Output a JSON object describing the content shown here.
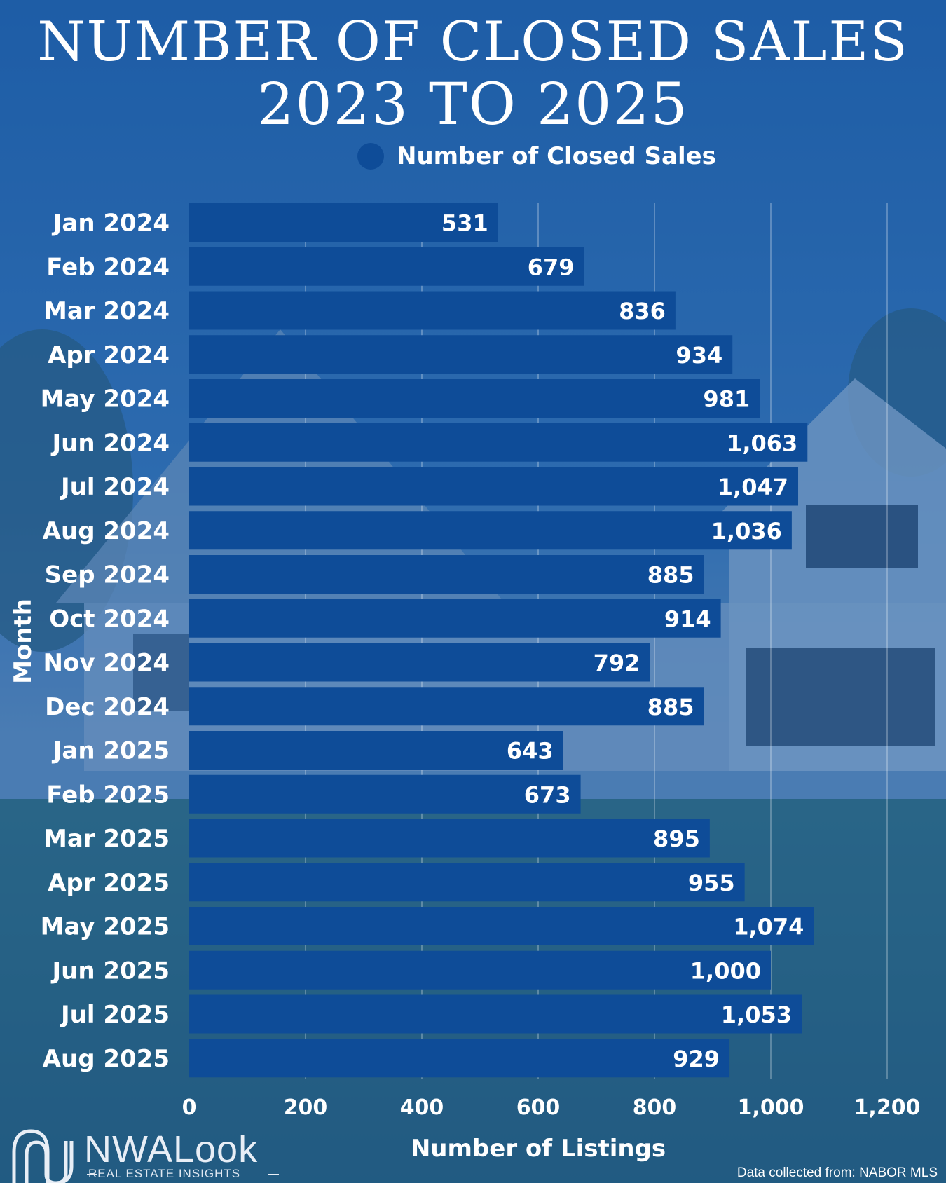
{
  "title_line1": "NUMBER OF CLOSED SALES",
  "title_line2": "2023 TO 2025",
  "legend_label": "Number of Closed Sales",
  "brand": {
    "name": "NWALook",
    "tagline": "REAL ESTATE INSIGHTS"
  },
  "source_text": "Data collected from: NABOR MLS",
  "colors": {
    "bar": "#0e4c98",
    "text": "#ffffff",
    "background": "#2c66a8"
  },
  "chart_data": {
    "type": "bar",
    "orientation": "horizontal",
    "title": "NUMBER OF CLOSED SALES 2023 TO 2025",
    "xlabel": "Number of Listings",
    "ylabel": "Month",
    "xlim": [
      0,
      1200
    ],
    "xticks": [
      0,
      200,
      400,
      600,
      800,
      1000,
      1200
    ],
    "xtick_labels": [
      "0",
      "200",
      "400",
      "600",
      "800",
      "1,000",
      "1,200"
    ],
    "grid": true,
    "legend": "top-center",
    "categories": [
      "Jan 2024",
      "Feb 2024",
      "Mar 2024",
      "Apr 2024",
      "May 2024",
      "Jun 2024",
      "Jul 2024",
      "Aug 2024",
      "Sep 2024",
      "Oct 2024",
      "Nov 2024",
      "Dec 2024",
      "Jan 2025",
      "Feb 2025",
      "Mar 2025",
      "Apr 2025",
      "May 2025",
      "Jun 2025",
      "Jul 2025",
      "Aug 2025"
    ],
    "series": [
      {
        "name": "Number of Closed Sales",
        "values": [
          531,
          679,
          836,
          934,
          981,
          1063,
          1047,
          1036,
          885,
          914,
          792,
          885,
          643,
          673,
          895,
          955,
          1074,
          1000,
          1053,
          929
        ],
        "value_labels": [
          "531",
          "679",
          "836",
          "934",
          "981",
          "1,063",
          "1,047",
          "1,036",
          "885",
          "914",
          "792",
          "885",
          "643",
          "673",
          "895",
          "955",
          "1,074",
          "1,000",
          "1,053",
          "929"
        ]
      }
    ]
  }
}
